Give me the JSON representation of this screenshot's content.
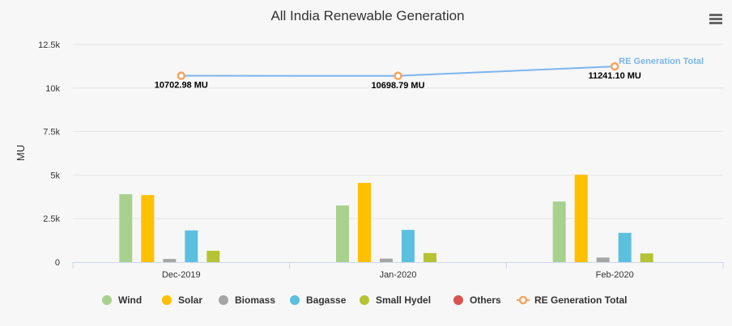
{
  "chart_data": {
    "type": "bar",
    "title": "All India Renewable Generation",
    "ylabel": "MU",
    "xlabel": "",
    "ylim": [
      0,
      12500
    ],
    "yticks": [
      0,
      2500,
      5000,
      7500,
      10000,
      12500
    ],
    "ytick_labels": [
      "0",
      "2.5k",
      "5k",
      "7.5k",
      "10k",
      "12.5k"
    ],
    "categories": [
      "Dec-2019",
      "Jan-2020",
      "Feb-2020"
    ],
    "series": [
      {
        "name": "Wind",
        "color": "#a9d18e",
        "values": [
          3900,
          3250,
          3480
        ]
      },
      {
        "name": "Solar",
        "color": "#ffc000",
        "values": [
          3850,
          4550,
          5020
        ]
      },
      {
        "name": "Biomass",
        "color": "#a5a5a5",
        "values": [
          180,
          200,
          260
        ]
      },
      {
        "name": "Bagasse",
        "color": "#5bc0de",
        "values": [
          1820,
          1850,
          1680
        ]
      },
      {
        "name": "Small Hydel",
        "color": "#b5c334",
        "values": [
          650,
          520,
          500
        ]
      },
      {
        "name": "Others",
        "color": "#d9534f",
        "values": [
          0,
          0,
          0
        ]
      }
    ],
    "line": {
      "name": "RE Generation Total",
      "color": "#7cb5ec",
      "marker_color": "#f4a460",
      "values": [
        10702.98,
        10698.79,
        11241.1
      ],
      "labels": [
        "10702.98 MU",
        "10698.79 MU",
        "11241.10 MU"
      ]
    },
    "grid": true,
    "legend_position": "bottom"
  },
  "ui": {
    "menu_icon": "hamburger-menu-icon"
  }
}
